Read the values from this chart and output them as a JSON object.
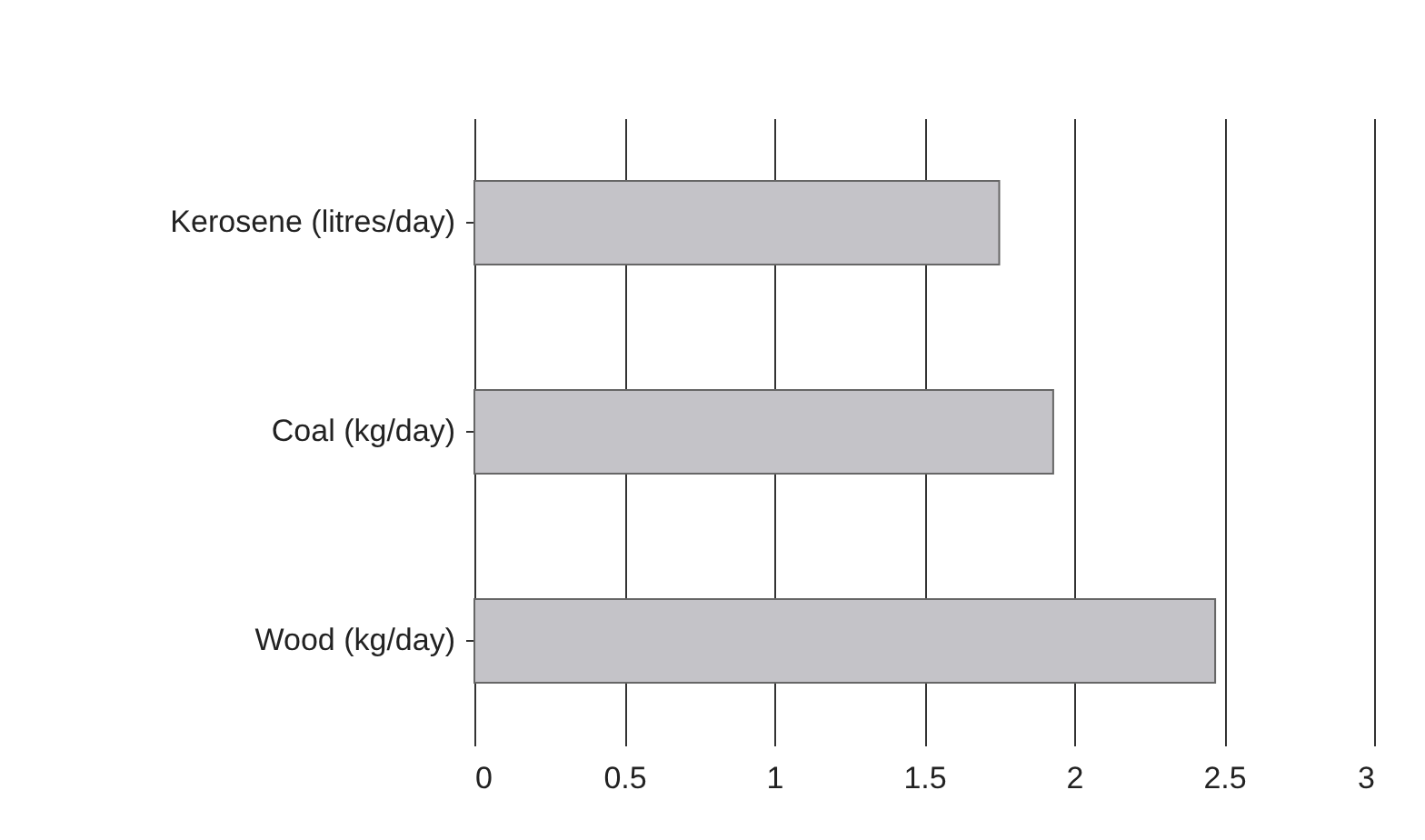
{
  "chart_data": {
    "type": "bar",
    "orientation": "horizontal",
    "categories": [
      "Kerosene (litres/day)",
      "Coal (kg/day)",
      "Wood (kg/day)"
    ],
    "values": [
      1.75,
      1.93,
      2.47
    ],
    "color": "#c4c3c8",
    "xlim": [
      0,
      3
    ],
    "xticks": [
      0,
      0.5,
      1,
      1.5,
      2,
      2.5,
      3
    ],
    "grid": "x"
  }
}
